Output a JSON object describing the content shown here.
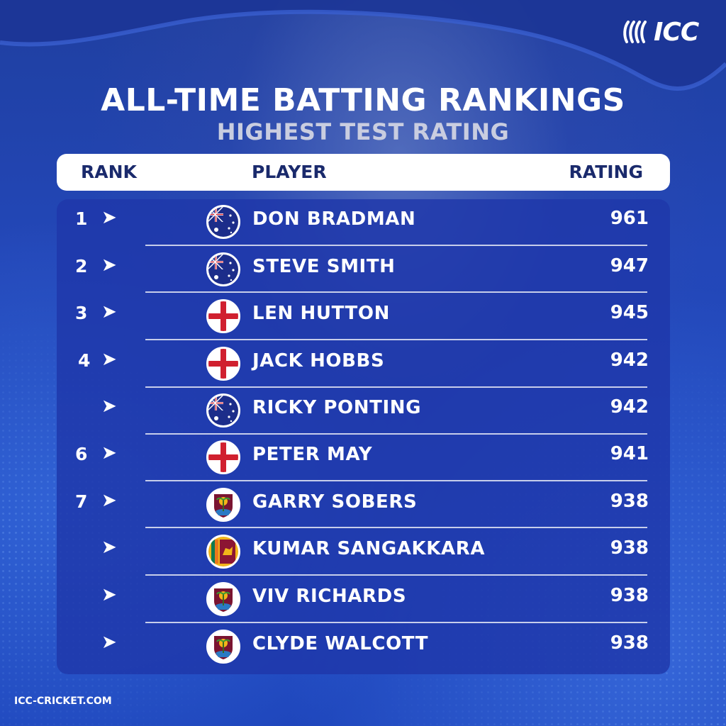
{
  "brand": {
    "logo_text": "ICC",
    "logo_icon": "icc-logo-icon"
  },
  "header": {
    "title": "ALL-TIME BATTING RANKINGS",
    "subtitle": "HIGHEST TEST RATING"
  },
  "table": {
    "columns": {
      "rank": "RANK",
      "player": "PLAYER",
      "rating": "RATING"
    },
    "rows": [
      {
        "rank": "1",
        "player": "DON BRADMAN",
        "rating": "961",
        "flag": "australia"
      },
      {
        "rank": "2",
        "player": "STEVE SMITH",
        "rating": "947",
        "flag": "australia"
      },
      {
        "rank": "3",
        "player": "LEN HUTTON",
        "rating": "945",
        "flag": "england"
      },
      {
        "rank": "4",
        "player": "JACK HOBBS",
        "rating": "942",
        "flag": "england"
      },
      {
        "rank": "",
        "player": "RICKY PONTING",
        "rating": "942",
        "flag": "australia"
      },
      {
        "rank": "6",
        "player": "PETER MAY",
        "rating": "941",
        "flag": "england"
      },
      {
        "rank": "7",
        "player": "GARRY SOBERS",
        "rating": "938",
        "flag": "west-indies"
      },
      {
        "rank": "",
        "player": "KUMAR SANGAKKARA",
        "rating": "938",
        "flag": "sri-lanka"
      },
      {
        "rank": "",
        "player": "VIV RICHARDS",
        "rating": "938",
        "flag": "west-indies"
      },
      {
        "rank": "",
        "player": "CLYDE WALCOTT",
        "rating": "938",
        "flag": "west-indies"
      }
    ],
    "arrow_glyph": "➤"
  },
  "footer": {
    "site": "ICC-CRICKET.COM"
  },
  "colors": {
    "background": "#2347b8",
    "header_text": "#1a2a6c",
    "subtitle": "#c9cde0"
  }
}
